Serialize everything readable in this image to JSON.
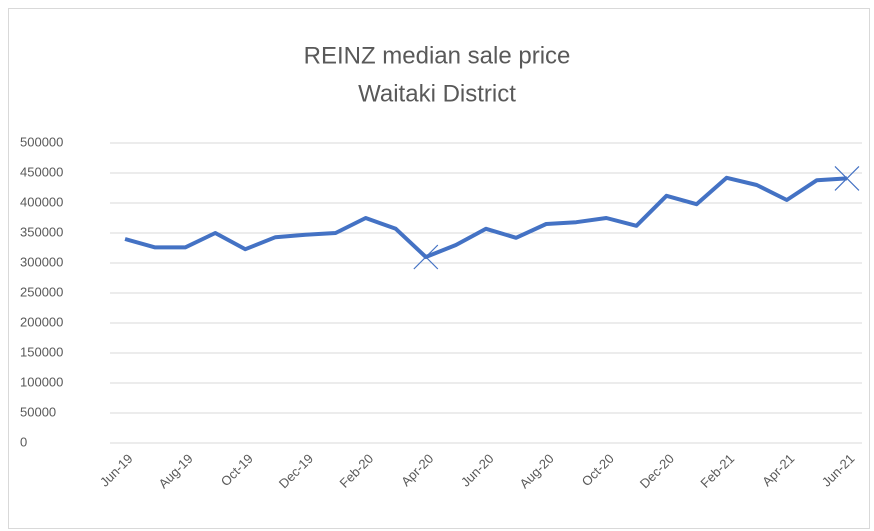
{
  "chart_data": {
    "type": "line",
    "title": "REINZ median sale price",
    "subtitle": "Waitaki District",
    "categories": [
      "Jun-19",
      null,
      "Aug-19",
      null,
      "Oct-19",
      null,
      "Dec-19",
      null,
      "Feb-20",
      null,
      "Apr-20",
      null,
      "Jun-20",
      null,
      "Aug-20",
      null,
      "Oct-20",
      null,
      "Dec-20",
      null,
      "Feb-21",
      null,
      "Apr-21",
      null,
      "Jun-21"
    ],
    "series": [
      {
        "name": "Median sale price",
        "color": "#4472c4",
        "values": [
          340000,
          326000,
          326000,
          350000,
          323000,
          343000,
          347000,
          350000,
          375000,
          357000,
          310000,
          330000,
          357000,
          342000,
          365000,
          368000,
          375000,
          362000,
          412000,
          398000,
          442000,
          430000,
          405000,
          438000,
          441000
        ]
      }
    ],
    "highlight_points": [
      10,
      24
    ],
    "ylim": [
      0,
      500000
    ],
    "yticks": [
      0,
      50000,
      100000,
      150000,
      200000,
      250000,
      300000,
      350000,
      400000,
      450000,
      500000
    ],
    "grid": true
  }
}
